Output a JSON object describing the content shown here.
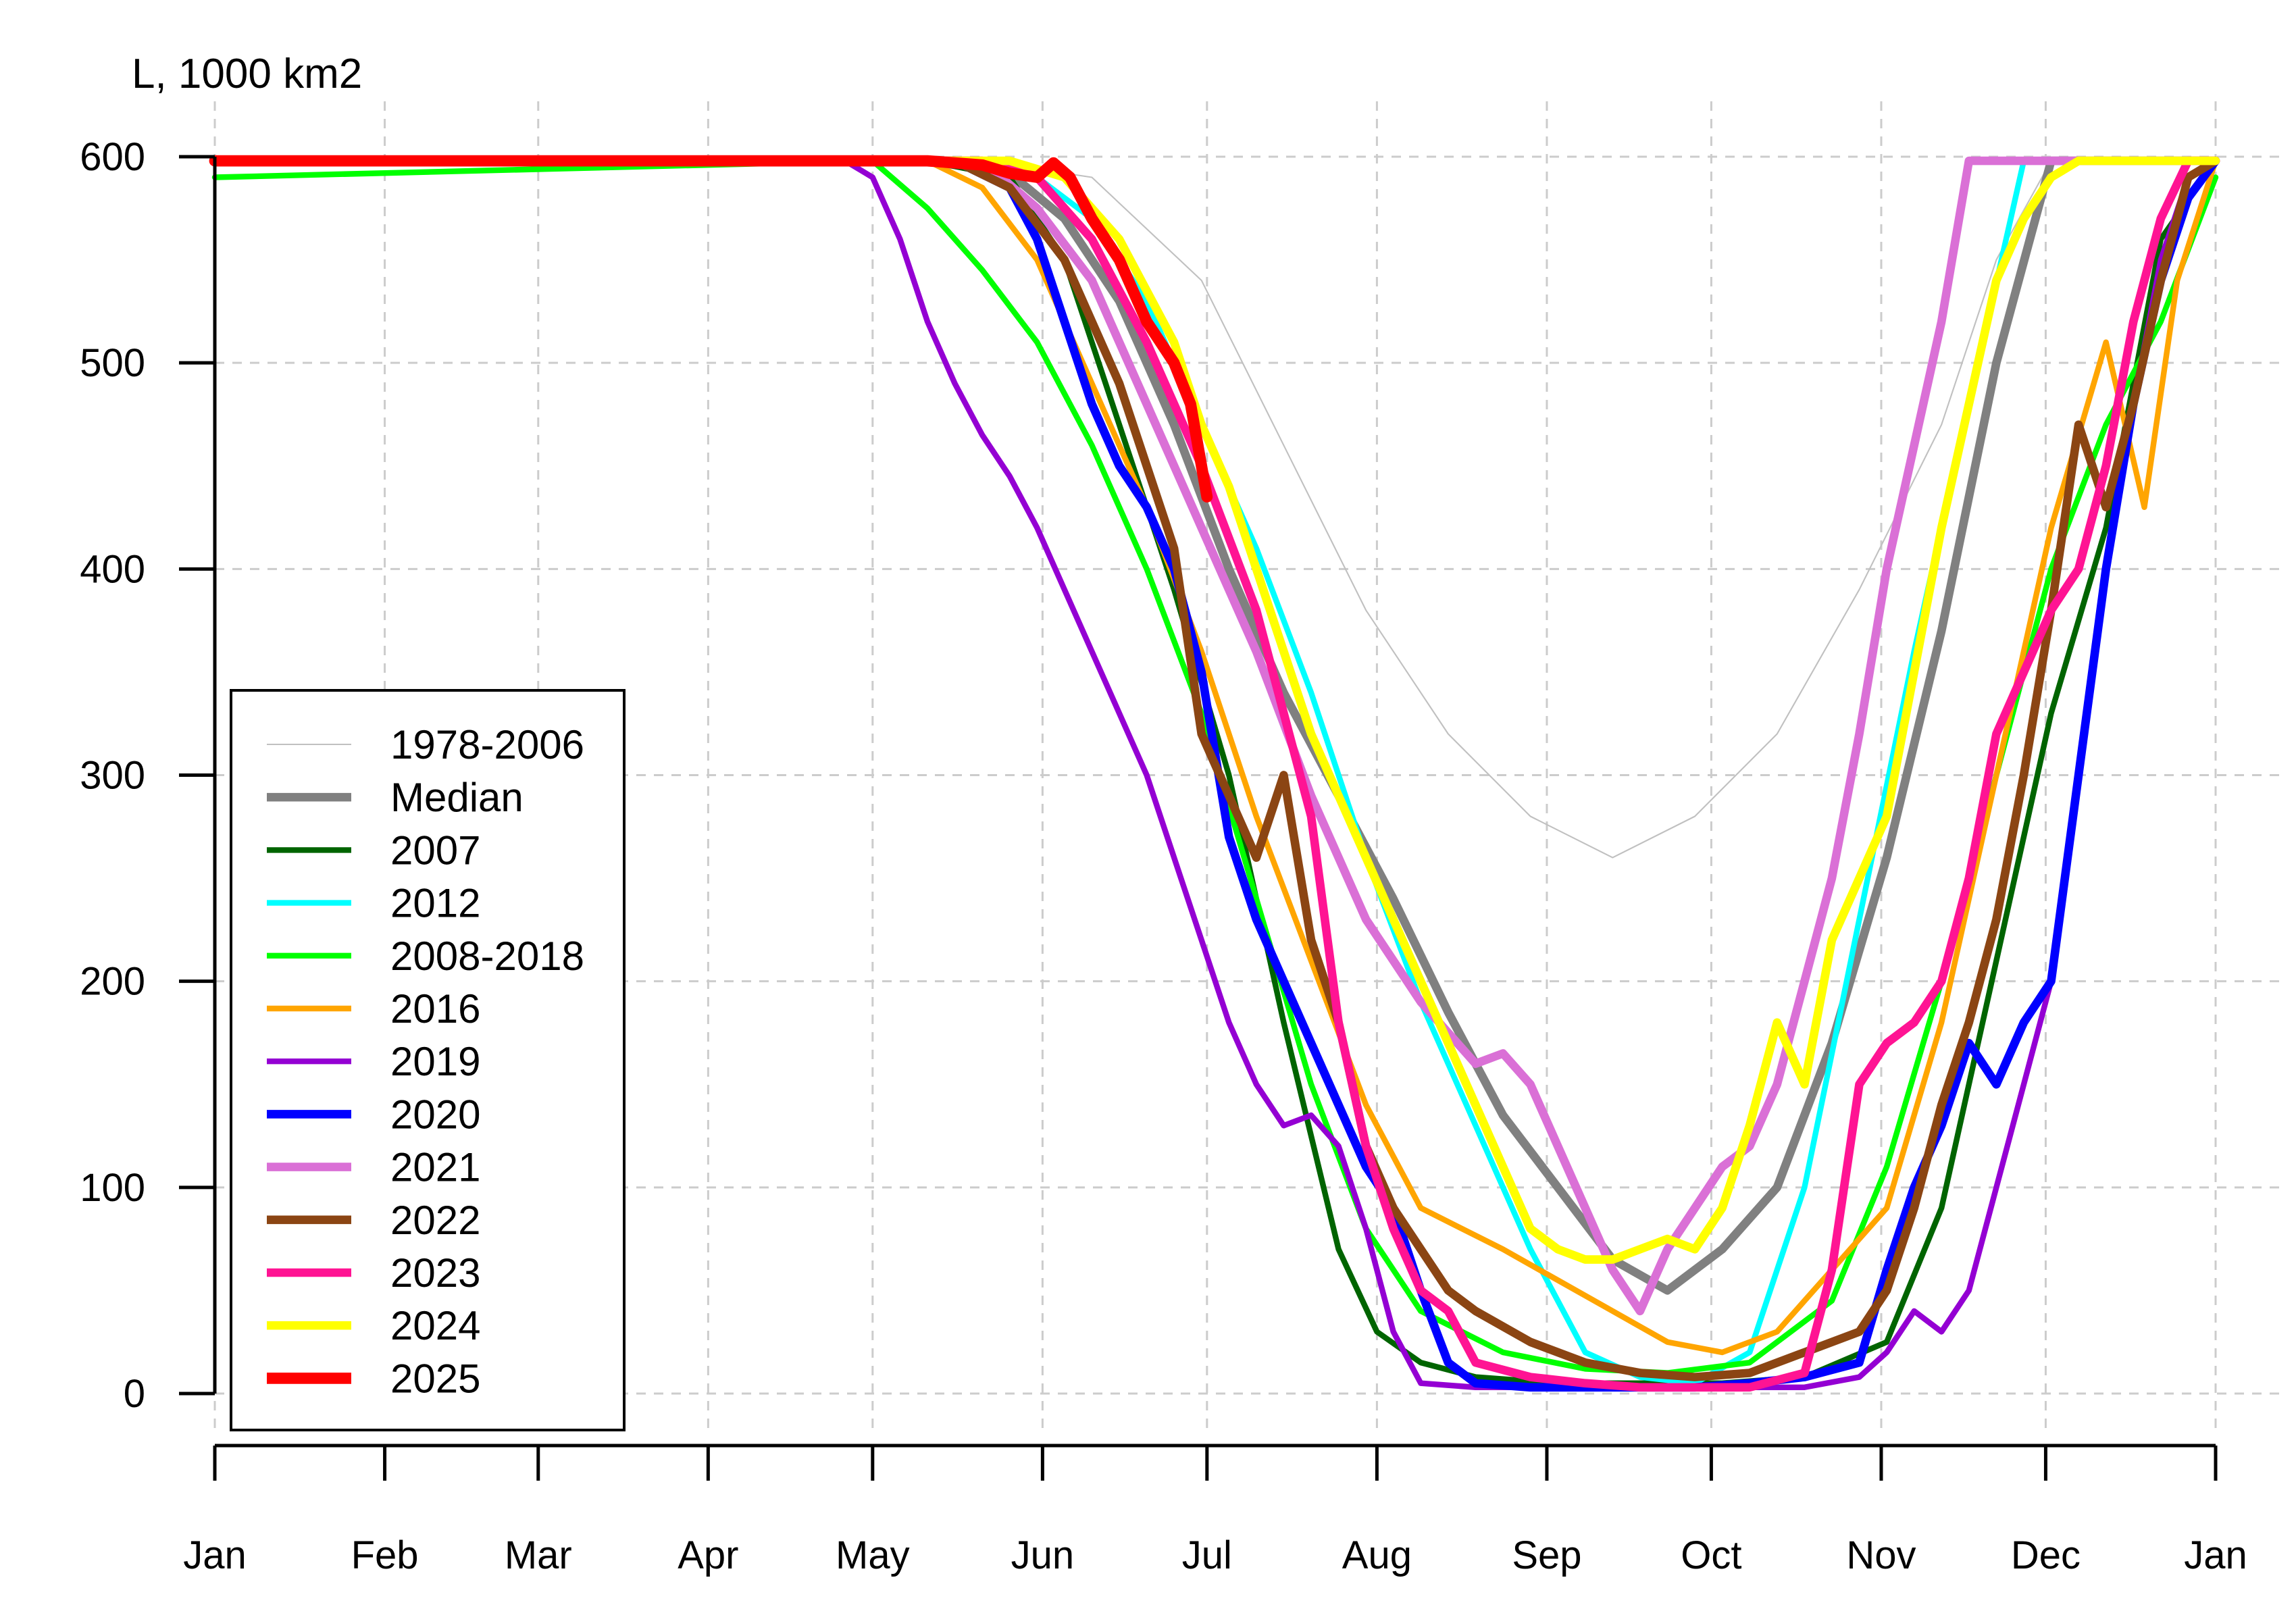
{
  "chart_data": {
    "type": "line",
    "title": "",
    "ylabel": "L, 1000 km2",
    "xlabel": "",
    "ylim": [
      0,
      600
    ],
    "xlim": [
      0,
      365
    ],
    "grid": true,
    "legend_position": "bottom-left",
    "y_ticks": [
      0,
      100,
      200,
      300,
      400,
      500,
      600
    ],
    "x_ticks": [
      {
        "label": "Jan",
        "day": 0
      },
      {
        "label": "Feb",
        "day": 31
      },
      {
        "label": "Mar",
        "day": 59
      },
      {
        "label": "Apr",
        "day": 90
      },
      {
        "label": "May",
        "day": 120
      },
      {
        "label": "Jun",
        "day": 151
      },
      {
        "label": "Jul",
        "day": 181
      },
      {
        "label": "Aug",
        "day": 212
      },
      {
        "label": "Sep",
        "day": 243
      },
      {
        "label": "Oct",
        "day": 273
      },
      {
        "label": "Nov",
        "day": 304
      },
      {
        "label": "Dec",
        "day": 334
      },
      {
        "label": "Jan",
        "day": 365
      }
    ],
    "series": [
      {
        "name": "1978-2006",
        "color": "#c0c0c0",
        "width": 1,
        "x": [
          0,
          140,
          160,
          180,
          195,
          210,
          225,
          240,
          255,
          270,
          285,
          300,
          315,
          325,
          335,
          365
        ],
        "y": [
          598,
          598,
          590,
          540,
          460,
          380,
          320,
          280,
          260,
          280,
          320,
          390,
          470,
          550,
          598,
          598
        ]
      },
      {
        "name": "Median",
        "color": "#808080",
        "width": 6,
        "x": [
          0,
          130,
          145,
          155,
          165,
          175,
          185,
          195,
          205,
          215,
          225,
          235,
          245,
          255,
          265,
          275,
          285,
          295,
          305,
          315,
          325,
          335,
          365
        ],
        "y": [
          598,
          598,
          592,
          570,
          530,
          470,
          400,
          340,
          290,
          240,
          185,
          135,
          100,
          65,
          50,
          70,
          100,
          170,
          260,
          370,
          500,
          598,
          598
        ]
      },
      {
        "name": "2007",
        "color": "#006400",
        "width": 4,
        "x": [
          0,
          130,
          145,
          155,
          165,
          175,
          185,
          195,
          205,
          212,
          220,
          230,
          245,
          260,
          275,
          290,
          305,
          315,
          325,
          335,
          345,
          355,
          365
        ],
        "y": [
          598,
          598,
          590,
          550,
          470,
          390,
          300,
          180,
          70,
          30,
          15,
          8,
          5,
          5,
          5,
          8,
          25,
          90,
          210,
          330,
          420,
          560,
          598
        ]
      },
      {
        "name": "2012",
        "color": "#00ffff",
        "width": 4,
        "x": [
          0,
          135,
          150,
          160,
          170,
          180,
          190,
          200,
          210,
          220,
          230,
          240,
          250,
          260,
          270,
          280,
          290,
          300,
          310,
          320,
          330,
          365
        ],
        "y": [
          598,
          598,
          590,
          570,
          530,
          470,
          410,
          340,
          260,
          190,
          130,
          70,
          20,
          8,
          5,
          20,
          100,
          230,
          360,
          480,
          598,
          598
        ]
      },
      {
        "name": "2008-2018",
        "color": "#00ff00",
        "width": 4,
        "x": [
          0,
          120,
          130,
          140,
          150,
          160,
          170,
          180,
          190,
          200,
          210,
          220,
          235,
          250,
          265,
          280,
          295,
          305,
          315,
          325,
          335,
          345,
          355,
          365
        ],
        "y": [
          590,
          598,
          575,
          545,
          510,
          460,
          400,
          330,
          240,
          150,
          80,
          40,
          20,
          12,
          10,
          15,
          45,
          110,
          200,
          300,
          400,
          470,
          520,
          590
        ]
      },
      {
        "name": "2016",
        "color": "#ffa500",
        "width": 4,
        "x": [
          0,
          130,
          140,
          150,
          160,
          170,
          180,
          190,
          200,
          210,
          220,
          235,
          245,
          255,
          265,
          275,
          285,
          295,
          305,
          315,
          325,
          335,
          345,
          352,
          358,
          365
        ],
        "y": [
          598,
          598,
          585,
          550,
          490,
          430,
          360,
          280,
          210,
          140,
          90,
          70,
          55,
          40,
          25,
          20,
          30,
          60,
          90,
          180,
          300,
          420,
          510,
          430,
          540,
          598
        ]
      },
      {
        "name": "2019",
        "color": "#9400d3",
        "width": 4,
        "x": [
          0,
          115,
          120,
          125,
          130,
          135,
          140,
          145,
          150,
          155,
          160,
          165,
          170,
          175,
          180,
          185,
          190,
          195,
          200,
          205,
          210,
          215,
          220,
          230,
          240,
          250,
          260,
          270,
          280,
          290,
          300,
          305,
          310,
          315,
          320,
          325,
          330,
          335,
          340,
          345,
          350,
          355,
          360,
          365
        ],
        "y": [
          598,
          598,
          590,
          560,
          520,
          490,
          465,
          445,
          420,
          390,
          360,
          330,
          300,
          260,
          220,
          180,
          150,
          130,
          135,
          120,
          80,
          30,
          5,
          3,
          3,
          3,
          3,
          3,
          3,
          3,
          8,
          20,
          40,
          30,
          50,
          100,
          150,
          200,
          300,
          400,
          480,
          550,
          590,
          598
        ]
      },
      {
        "name": "2020",
        "color": "#0000ff",
        "width": 6,
        "x": [
          0,
          135,
          145,
          150,
          155,
          160,
          165,
          170,
          175,
          180,
          185,
          190,
          195,
          200,
          205,
          210,
          215,
          220,
          225,
          230,
          240,
          250,
          260,
          270,
          280,
          290,
          300,
          305,
          310,
          315,
          320,
          325,
          330,
          335,
          340,
          345,
          350,
          355,
          360,
          365
        ],
        "y": [
          598,
          598,
          585,
          560,
          520,
          480,
          450,
          430,
          400,
          350,
          270,
          230,
          200,
          170,
          140,
          110,
          90,
          50,
          15,
          5,
          3,
          3,
          3,
          3,
          5,
          8,
          15,
          60,
          100,
          130,
          170,
          150,
          180,
          200,
          300,
          400,
          480,
          540,
          580,
          598
        ]
      },
      {
        "name": "2021",
        "color": "#da70d6",
        "width": 6,
        "x": [
          0,
          140,
          150,
          160,
          170,
          180,
          190,
          200,
          210,
          220,
          230,
          235,
          240,
          245,
          250,
          255,
          260,
          265,
          270,
          275,
          280,
          285,
          290,
          295,
          300,
          305,
          310,
          315,
          320,
          325,
          330,
          335,
          365
        ],
        "y": [
          598,
          598,
          575,
          540,
          480,
          420,
          360,
          290,
          230,
          190,
          160,
          165,
          150,
          120,
          90,
          60,
          40,
          70,
          90,
          110,
          120,
          150,
          200,
          250,
          320,
          400,
          460,
          520,
          598,
          598,
          598,
          598,
          598
        ]
      },
      {
        "name": "2022",
        "color": "#8b4513",
        "width": 6,
        "x": [
          0,
          135,
          145,
          155,
          165,
          175,
          180,
          185,
          190,
          195,
          200,
          205,
          210,
          215,
          220,
          225,
          230,
          240,
          250,
          260,
          270,
          280,
          290,
          300,
          305,
          310,
          315,
          320,
          325,
          330,
          335,
          340,
          345,
          350,
          355,
          360,
          365
        ],
        "y": [
          598,
          598,
          585,
          550,
          490,
          410,
          320,
          290,
          260,
          300,
          220,
          180,
          120,
          90,
          70,
          50,
          40,
          25,
          15,
          10,
          8,
          10,
          20,
          30,
          50,
          90,
          140,
          180,
          230,
          300,
          380,
          470,
          430,
          480,
          540,
          590,
          598
        ]
      },
      {
        "name": "2023",
        "color": "#ff1493",
        "width": 6,
        "x": [
          0,
          140,
          150,
          160,
          170,
          180,
          190,
          200,
          205,
          210,
          215,
          220,
          225,
          230,
          240,
          250,
          260,
          270,
          280,
          290,
          295,
          300,
          305,
          310,
          315,
          320,
          325,
          330,
          335,
          340,
          345,
          350,
          355,
          360,
          365
        ],
        "y": [
          598,
          598,
          590,
          560,
          510,
          450,
          380,
          280,
          180,
          120,
          80,
          50,
          40,
          15,
          8,
          5,
          3,
          3,
          3,
          10,
          60,
          150,
          170,
          180,
          200,
          250,
          320,
          350,
          380,
          400,
          450,
          520,
          570,
          598,
          598
        ]
      },
      {
        "name": "2024",
        "color": "#ffff00",
        "width": 6,
        "x": [
          0,
          145,
          155,
          165,
          175,
          180,
          185,
          190,
          195,
          200,
          205,
          210,
          215,
          220,
          225,
          230,
          235,
          240,
          245,
          250,
          255,
          260,
          265,
          270,
          275,
          280,
          285,
          290,
          295,
          300,
          305,
          310,
          315,
          320,
          325,
          330,
          335,
          340,
          345,
          365
        ],
        "y": [
          598,
          598,
          590,
          560,
          510,
          470,
          440,
          400,
          360,
          320,
          290,
          260,
          230,
          200,
          170,
          140,
          110,
          80,
          70,
          65,
          65,
          70,
          75,
          70,
          90,
          130,
          180,
          150,
          220,
          250,
          280,
          350,
          420,
          480,
          540,
          570,
          590,
          598,
          598,
          598
        ]
      },
      {
        "name": "2025",
        "color": "#ff0000",
        "width": 8,
        "x": [
          0,
          130,
          140,
          145,
          150,
          153,
          156,
          160,
          165,
          170,
          175,
          178,
          181
        ],
        "y": [
          598,
          598,
          596,
          592,
          590,
          597,
          590,
          570,
          550,
          520,
          500,
          480,
          435
        ]
      }
    ],
    "legend": [
      "1978-2006",
      "Median",
      "2007",
      "2012",
      "2008-2018",
      "2016",
      "2019",
      "2020",
      "2021",
      "2022",
      "2023",
      "2024",
      "2025"
    ]
  }
}
